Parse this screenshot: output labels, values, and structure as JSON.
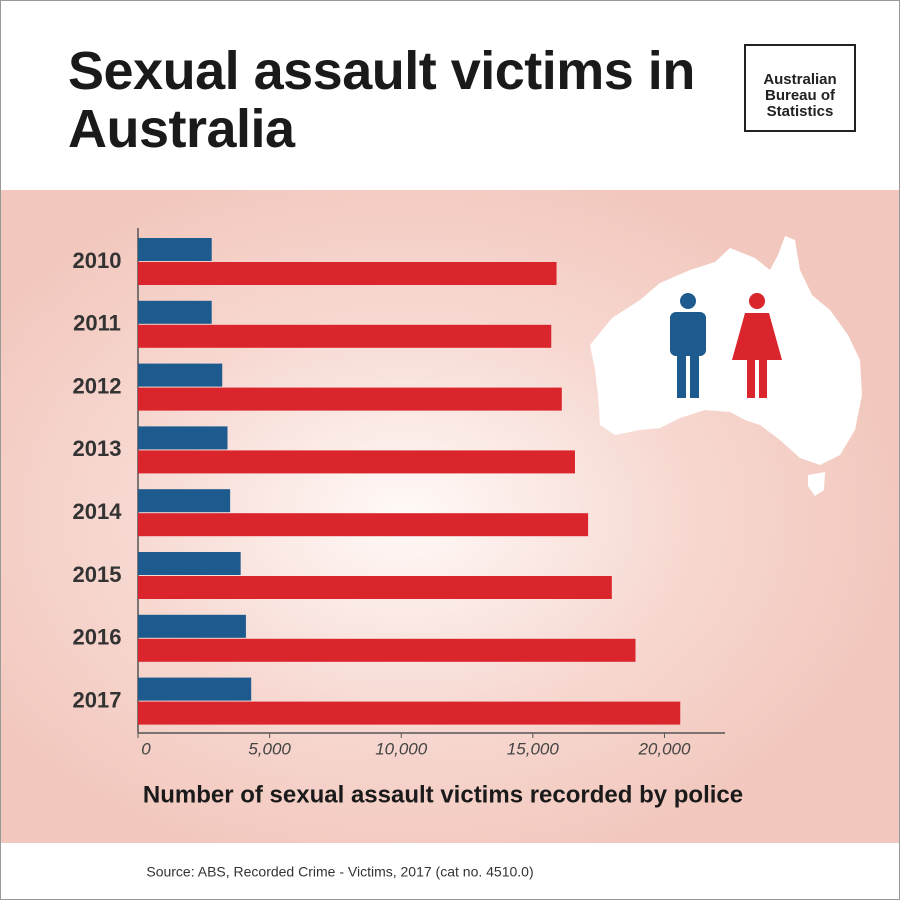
{
  "chart_data": {
    "type": "bar",
    "orientation": "horizontal",
    "title": "Sexual assault victims in Australia",
    "logo": [
      "Australian",
      "Bureau of",
      "Statistics"
    ],
    "categories": [
      "2010",
      "2011",
      "2012",
      "2013",
      "2014",
      "2015",
      "2016",
      "2017"
    ],
    "series": [
      {
        "color": "#1d5a8e",
        "values": [
          2800,
          2800,
          3200,
          3400,
          3500,
          3900,
          4100,
          4300
        ]
      },
      {
        "color": "#d9252b",
        "values": [
          15900,
          15700,
          16100,
          16600,
          17100,
          18000,
          18900,
          20600
        ]
      }
    ],
    "xlim": [
      0,
      22300
    ],
    "xticks": [
      0,
      {
        "value": 5000,
        "label": "5,000"
      },
      {
        "value": 10000,
        "label": "10,000"
      },
      {
        "value": 15000,
        "label": "15,000"
      },
      {
        "value": 20000,
        "label": "20,000"
      }
    ],
    "xlabel": "Number of sexual assault victims recorded by police",
    "source": "Source: ABS, Recorded Crime - Victims, 2017 (cat no. 4510.0)"
  }
}
